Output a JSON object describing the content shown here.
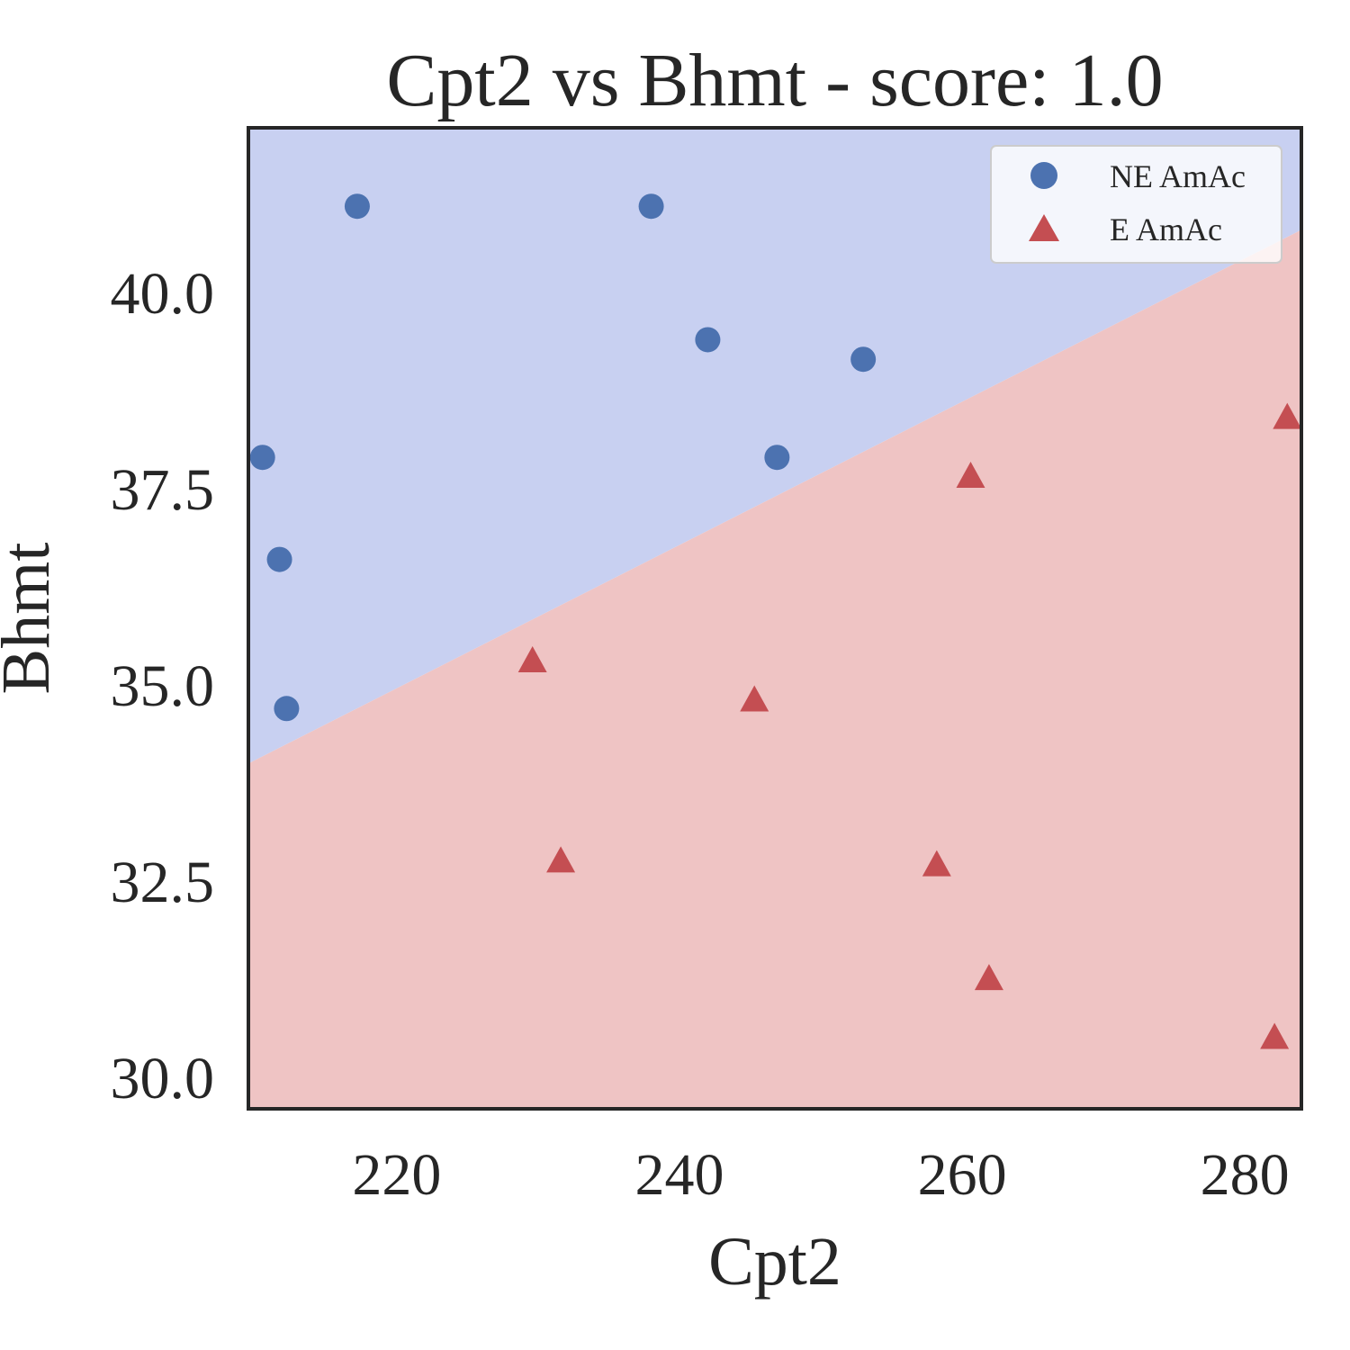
{
  "chart_data": {
    "type": "scatter",
    "title": "Cpt2 vs Bhmt - score: 1.0",
    "xlabel": "Cpt2",
    "ylabel": "Bhmt",
    "xlim": [
      209.5,
      284
    ],
    "ylim": [
      29.6,
      42.1
    ],
    "xticks": [
      220,
      240,
      260,
      280
    ],
    "yticks": [
      30.0,
      32.5,
      35.0,
      37.5,
      40.0
    ],
    "xtick_labels": [
      "220",
      "240",
      "260",
      "280"
    ],
    "ytick_labels": [
      "30.0",
      "32.5",
      "35.0",
      "37.5",
      "40.0"
    ],
    "grid": false,
    "legend_position": "top-right",
    "decision_boundary": {
      "points": [
        [
          209.5,
          34.0
        ],
        [
          284,
          40.8
        ]
      ],
      "above_region_color": "#c8d0f1",
      "below_region_color": "#efc4c4"
    },
    "series": [
      {
        "name": "NE AmAc",
        "marker": "circle",
        "color": "#4c72b0",
        "points": [
          [
            217.2,
            41.1
          ],
          [
            238.0,
            41.1
          ],
          [
            242.0,
            39.4
          ],
          [
            253.0,
            39.15
          ],
          [
            246.9,
            37.9
          ],
          [
            210.5,
            37.9
          ],
          [
            211.7,
            36.6
          ],
          [
            212.2,
            34.7
          ]
        ]
      },
      {
        "name": "E AmAc",
        "marker": "triangle",
        "color": "#c44e52",
        "points": [
          [
            229.6,
            35.3
          ],
          [
            245.3,
            34.8
          ],
          [
            231.6,
            32.75
          ],
          [
            258.2,
            32.7
          ],
          [
            260.6,
            37.65
          ],
          [
            261.9,
            31.25
          ],
          [
            283.0,
            38.4
          ],
          [
            282.1,
            30.5
          ]
        ]
      }
    ]
  }
}
